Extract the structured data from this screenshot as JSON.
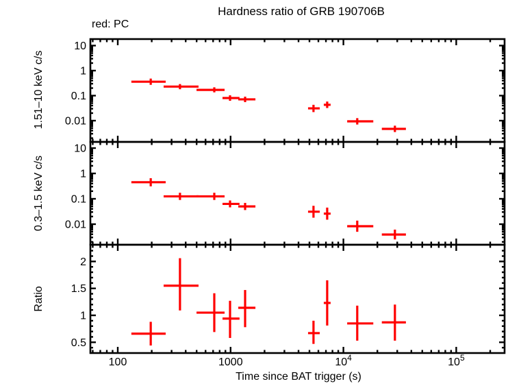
{
  "header": {
    "title": "Hardness ratio of GRB 190706B",
    "legend": "red: PC"
  },
  "axes": {
    "x": {
      "label": "Time since BAT trigger (s)",
      "scale": "log",
      "range": [
        55,
        270000
      ],
      "ticks": [
        {
          "base": "100",
          "sup": "",
          "value": 100
        },
        {
          "base": "1000",
          "sup": "",
          "value": 1000
        },
        {
          "base": "10",
          "sup": "4",
          "value": 10000
        },
        {
          "base": "10",
          "sup": "5",
          "value": 100000
        }
      ]
    },
    "y_top": {
      "label": "1.51–10 keV c/s",
      "scale": "log",
      "range": [
        0.0014,
        18
      ],
      "ticks": [
        {
          "base": "10",
          "value": 10
        },
        {
          "base": "1",
          "value": 1
        },
        {
          "base": "0.1",
          "value": 0.1
        },
        {
          "base": "0.01",
          "value": 0.01
        }
      ]
    },
    "y_mid": {
      "label": "0.3–1.5 keV c/s",
      "scale": "log",
      "range": [
        0.0015,
        17.5
      ],
      "ticks": [
        {
          "base": "10",
          "value": 10
        },
        {
          "base": "1",
          "value": 1
        },
        {
          "base": "0.1",
          "value": 0.1
        },
        {
          "base": "0.01",
          "value": 0.01
        }
      ]
    },
    "y_ratio": {
      "label": "Ratio",
      "scale": "linear",
      "range": [
        0.3,
        2.31
      ],
      "ticks": [
        {
          "base": "2",
          "value": 2
        },
        {
          "base": "1.5",
          "value": 1.5
        },
        {
          "base": "1",
          "value": 1
        },
        {
          "base": "0.5",
          "value": 0.5
        }
      ]
    }
  },
  "style": {
    "marker_color": "#ff0000",
    "axis_color": "#000000",
    "background": "#ffffff"
  },
  "chart_data": [
    {
      "type": "scatter",
      "panel": "top",
      "series_name": "PC",
      "color": "#ff0000",
      "title": "Hardness ratio of GRB 190706B",
      "xlabel": "Time since BAT trigger (s)",
      "ylabel": "1.51–10 keV c/s",
      "xscale": "log",
      "yscale": "log",
      "xlim": [
        55,
        270000
      ],
      "ylim": [
        0.0014,
        18
      ],
      "legend_position": "top-left-outside",
      "grid": false,
      "points": [
        {
          "t": 196,
          "t_lo": 132,
          "t_hi": 266,
          "v": 0.36,
          "v_lo": 0.27,
          "v_hi": 0.48
        },
        {
          "t": 356,
          "t_lo": 255,
          "t_hi": 520,
          "v": 0.23,
          "v_lo": 0.18,
          "v_hi": 0.29
        },
        {
          "t": 717,
          "t_lo": 499,
          "t_hi": 885,
          "v": 0.17,
          "v_lo": 0.135,
          "v_hi": 0.215
        },
        {
          "t": 989,
          "t_lo": 848,
          "t_hi": 1200,
          "v": 0.08,
          "v_lo": 0.062,
          "v_hi": 0.103
        },
        {
          "t": 1345,
          "t_lo": 1170,
          "t_hi": 1660,
          "v": 0.071,
          "v_lo": 0.055,
          "v_hi": 0.091
        },
        {
          "t": 5430,
          "t_lo": 4860,
          "t_hi": 6170,
          "v": 0.031,
          "v_lo": 0.022,
          "v_hi": 0.043
        },
        {
          "t": 7180,
          "t_lo": 6700,
          "t_hi": 7700,
          "v": 0.043,
          "v_lo": 0.032,
          "v_hi": 0.058
        },
        {
          "t": 13260,
          "t_lo": 10800,
          "t_hi": 18400,
          "v": 0.0094,
          "v_lo": 0.007,
          "v_hi": 0.0126
        },
        {
          "t": 28600,
          "t_lo": 21900,
          "t_hi": 35800,
          "v": 0.0047,
          "v_lo": 0.0035,
          "v_hi": 0.0063
        }
      ]
    },
    {
      "type": "scatter",
      "panel": "middle",
      "series_name": "PC",
      "color": "#ff0000",
      "xlabel": "Time since BAT trigger (s)",
      "ylabel": "0.3–1.5 keV c/s",
      "xscale": "log",
      "yscale": "log",
      "xlim": [
        55,
        270000
      ],
      "ylim": [
        0.0015,
        17.5
      ],
      "grid": false,
      "points": [
        {
          "t": 196,
          "t_lo": 132,
          "t_hi": 266,
          "v": 0.45,
          "v_lo": 0.31,
          "v_hi": 0.65
        },
        {
          "t": 356,
          "t_lo": 255,
          "t_hi": 520,
          "v": 0.125,
          "v_lo": 0.09,
          "v_hi": 0.173
        },
        {
          "t": 717,
          "t_lo": 499,
          "t_hi": 885,
          "v": 0.125,
          "v_lo": 0.09,
          "v_hi": 0.173
        },
        {
          "t": 989,
          "t_lo": 848,
          "t_hi": 1200,
          "v": 0.063,
          "v_lo": 0.046,
          "v_hi": 0.086
        },
        {
          "t": 1345,
          "t_lo": 1170,
          "t_hi": 1660,
          "v": 0.05,
          "v_lo": 0.036,
          "v_hi": 0.069
        },
        {
          "t": 5430,
          "t_lo": 4860,
          "t_hi": 6170,
          "v": 0.031,
          "v_lo": 0.018,
          "v_hi": 0.053
        },
        {
          "t": 7180,
          "t_lo": 6700,
          "t_hi": 7700,
          "v": 0.026,
          "v_lo": 0.015,
          "v_hi": 0.045
        },
        {
          "t": 13260,
          "t_lo": 10800,
          "t_hi": 18400,
          "v": 0.0083,
          "v_lo": 0.005,
          "v_hi": 0.0138
        },
        {
          "t": 28600,
          "t_lo": 21900,
          "t_hi": 35800,
          "v": 0.0039,
          "v_lo": 0.0025,
          "v_hi": 0.0061
        }
      ]
    },
    {
      "type": "scatter",
      "panel": "bottom",
      "series_name": "PC",
      "color": "#ff0000",
      "xlabel": "Time since BAT trigger (s)",
      "ylabel": "Ratio",
      "xscale": "log",
      "yscale": "linear",
      "xlim": [
        55,
        270000
      ],
      "ylim": [
        0.3,
        2.31
      ],
      "grid": false,
      "points": [
        {
          "t": 196,
          "t_lo": 132,
          "t_hi": 266,
          "v": 0.66,
          "v_lo": 0.44,
          "v_hi": 0.88
        },
        {
          "t": 356,
          "t_lo": 255,
          "t_hi": 520,
          "v": 1.55,
          "v_lo": 1.09,
          "v_hi": 2.06
        },
        {
          "t": 717,
          "t_lo": 499,
          "t_hi": 885,
          "v": 1.05,
          "v_lo": 0.69,
          "v_hi": 1.41
        },
        {
          "t": 989,
          "t_lo": 848,
          "t_hi": 1200,
          "v": 0.94,
          "v_lo": 0.58,
          "v_hi": 1.27
        },
        {
          "t": 1345,
          "t_lo": 1170,
          "t_hi": 1660,
          "v": 1.14,
          "v_lo": 0.78,
          "v_hi": 1.47
        },
        {
          "t": 5430,
          "t_lo": 4860,
          "t_hi": 6170,
          "v": 0.67,
          "v_lo": 0.47,
          "v_hi": 0.9
        },
        {
          "t": 7180,
          "t_lo": 6700,
          "t_hi": 7700,
          "v": 1.23,
          "v_lo": 0.81,
          "v_hi": 1.65
        },
        {
          "t": 13260,
          "t_lo": 10800,
          "t_hi": 18400,
          "v": 0.85,
          "v_lo": 0.53,
          "v_hi": 1.18
        },
        {
          "t": 28600,
          "t_lo": 21900,
          "t_hi": 35800,
          "v": 0.87,
          "v_lo": 0.53,
          "v_hi": 1.2
        }
      ]
    }
  ]
}
